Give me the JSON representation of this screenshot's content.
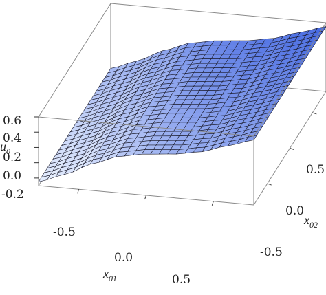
{
  "chart_data": {
    "type": "surface",
    "title": "",
    "axes": {
      "x": {
        "label": "x",
        "label_subscript": "01",
        "range": [
          -0.8,
          0.8
        ],
        "ticks": [
          "-0.5",
          "0.0",
          "0.5"
        ]
      },
      "y": {
        "label": "x",
        "label_subscript": "02",
        "range": [
          -0.8,
          0.8
        ],
        "ticks": [
          "-0.5",
          "0.0",
          "0.5"
        ]
      },
      "z": {
        "label": "u",
        "label_subscript": "0",
        "range": [
          -0.3,
          0.6
        ],
        "ticks": [
          "-0.2",
          "0.0",
          "0.2",
          "0.4",
          "0.6"
        ]
      }
    },
    "grid": {
      "x_samples": 25,
      "y_samples": 25
    },
    "surface_profile": {
      "description_of_shape": "u0 varies along x01 only: rises from about -0.25 at x01=-0.8 to a shoulder near 0.25 around x01=0.1, then up to about 0.55 at x01=0.8",
      "x01": [
        -0.8,
        -0.6,
        -0.4,
        -0.2,
        0.0,
        0.2,
        0.4,
        0.6,
        0.8
      ],
      "u0": [
        -0.25,
        -0.12,
        0.05,
        0.18,
        0.24,
        0.27,
        0.33,
        0.44,
        0.55
      ]
    },
    "colors": {
      "low": "#eef5ff",
      "high": "#3d62e0",
      "mesh": "#1a1a2a",
      "box": "#8a8a8a"
    }
  }
}
